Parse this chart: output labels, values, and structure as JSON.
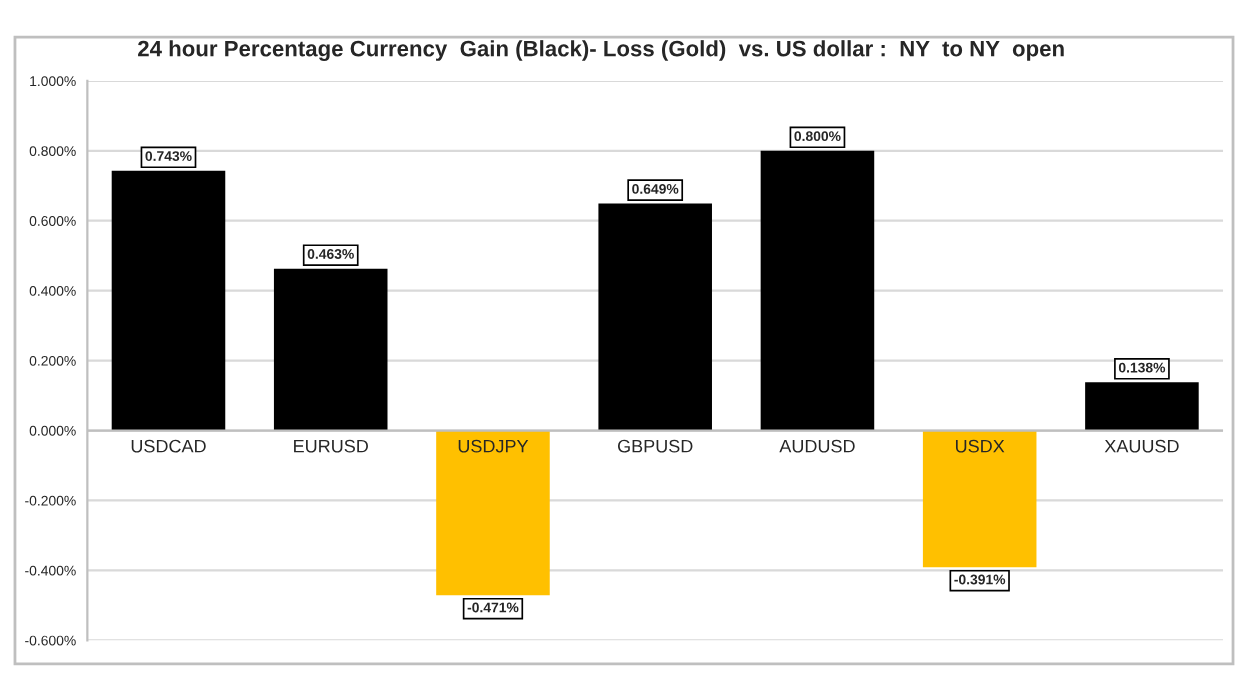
{
  "chart_data": {
    "type": "bar",
    "title": "24 hour Percentage Currency  Gain (Black)- Loss (Gold)  vs. US dollar :  NY  to NY  open",
    "categories": [
      "USDCAD",
      "EURUSD",
      "USDJPY",
      "GBPUSD",
      "AUDUSD",
      "USDX",
      "XAUUSD"
    ],
    "values": [
      0.743,
      0.463,
      -0.471,
      0.649,
      0.8,
      -0.391,
      0.138
    ],
    "colors": [
      "#000000",
      "#000000",
      "#ffc000",
      "#000000",
      "#000000",
      "#ffc000",
      "#000000"
    ],
    "value_labels": [
      "0.743%",
      "0.463%",
      "-0.471%",
      "0.649%",
      "0.800%",
      "-0.391%",
      "0.138%"
    ],
    "ylim": [
      -0.6,
      1.0
    ],
    "yticks": [
      {
        "value": -0.6,
        "label": "-0.600%"
      },
      {
        "value": -0.4,
        "label": "-0.400%"
      },
      {
        "value": -0.2,
        "label": "-0.200%"
      },
      {
        "value": 0.0,
        "label": "0.000%"
      },
      {
        "value": 0.2,
        "label": "0.200%"
      },
      {
        "value": 0.4,
        "label": "0.400%"
      },
      {
        "value": 0.6,
        "label": "0.600%"
      },
      {
        "value": 0.8,
        "label": "0.800%"
      },
      {
        "value": 1.0,
        "label": "1.000%"
      }
    ],
    "grid": "y"
  }
}
